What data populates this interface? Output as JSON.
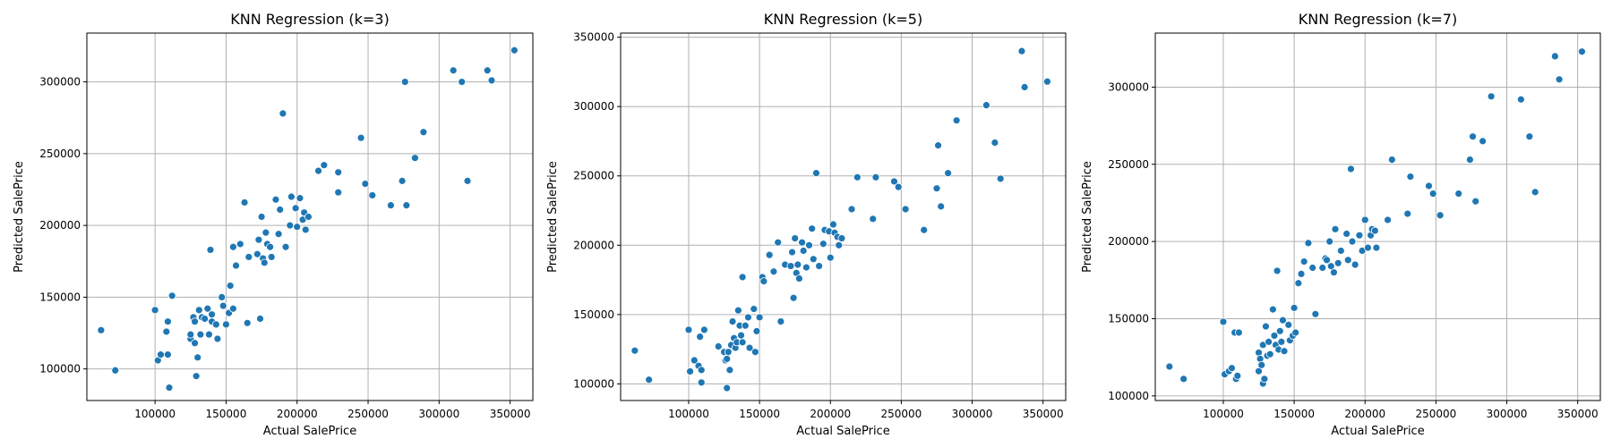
{
  "chart_data": [
    {
      "type": "scatter",
      "title": "KNN Regression (k=3)",
      "xlabel": "Actual SalePrice",
      "ylabel": "Predicted SalePrice",
      "xlim": [
        52000,
        366000
      ],
      "ylim": [
        78000,
        334000
      ],
      "xticks": [
        100000,
        150000,
        200000,
        250000,
        300000,
        350000
      ],
      "yticks": [
        100000,
        150000,
        200000,
        250000,
        300000
      ],
      "grid": true,
      "color": "#1f77b4",
      "points": [
        [
          62000,
          127000
        ],
        [
          72000,
          99000
        ],
        [
          100000,
          141000
        ],
        [
          102000,
          106000
        ],
        [
          104000,
          110000
        ],
        [
          108000,
          126000
        ],
        [
          109000,
          110000
        ],
        [
          109000,
          133000
        ],
        [
          110000,
          87000
        ],
        [
          112000,
          151000
        ],
        [
          125000,
          121000
        ],
        [
          125000,
          124000
        ],
        [
          127000,
          136000
        ],
        [
          128000,
          118000
        ],
        [
          128000,
          133000
        ],
        [
          129000,
          95000
        ],
        [
          130000,
          108000
        ],
        [
          131000,
          141000
        ],
        [
          132000,
          124000
        ],
        [
          133000,
          136000
        ],
        [
          135000,
          135000
        ],
        [
          137000,
          142000
        ],
        [
          138000,
          124000
        ],
        [
          139000,
          183000
        ],
        [
          140000,
          138000
        ],
        [
          140000,
          133000
        ],
        [
          143000,
          131000
        ],
        [
          144000,
          121000
        ],
        [
          147000,
          150000
        ],
        [
          148000,
          144000
        ],
        [
          150000,
          131000
        ],
        [
          152000,
          139000
        ],
        [
          153000,
          158000
        ],
        [
          155000,
          142000
        ],
        [
          155000,
          185000
        ],
        [
          157000,
          172000
        ],
        [
          160000,
          187000
        ],
        [
          163000,
          216000
        ],
        [
          165000,
          132000
        ],
        [
          166000,
          178000
        ],
        [
          172000,
          180000
        ],
        [
          173000,
          190000
        ],
        [
          174000,
          135000
        ],
        [
          175000,
          206000
        ],
        [
          176000,
          177000
        ],
        [
          177000,
          174000
        ],
        [
          178000,
          195000
        ],
        [
          179000,
          187000
        ],
        [
          181000,
          185000
        ],
        [
          182000,
          178000
        ],
        [
          185000,
          218000
        ],
        [
          187000,
          194000
        ],
        [
          188000,
          211000
        ],
        [
          190000,
          278000
        ],
        [
          192000,
          185000
        ],
        [
          195000,
          200000
        ],
        [
          196000,
          220000
        ],
        [
          199000,
          212000
        ],
        [
          200000,
          199000
        ],
        [
          202000,
          219000
        ],
        [
          204000,
          204000
        ],
        [
          205000,
          209000
        ],
        [
          206000,
          197000
        ],
        [
          208000,
          206000
        ],
        [
          215000,
          238000
        ],
        [
          219000,
          242000
        ],
        [
          229000,
          237000
        ],
        [
          229000,
          223000
        ],
        [
          245000,
          261000
        ],
        [
          248000,
          229000
        ],
        [
          253000,
          221000
        ],
        [
          266000,
          214000
        ],
        [
          274000,
          231000
        ],
        [
          276000,
          300000
        ],
        [
          277000,
          214000
        ],
        [
          283000,
          247000
        ],
        [
          289000,
          265000
        ],
        [
          310000,
          308000
        ],
        [
          316000,
          300000
        ],
        [
          320000,
          231000
        ],
        [
          334000,
          308000
        ],
        [
          337000,
          301000
        ],
        [
          353000,
          322000
        ]
      ]
    },
    {
      "type": "scatter",
      "title": "KNN Regression (k=5)",
      "xlabel": "Actual SalePrice",
      "ylabel": "Predicted SalePrice",
      "xlim": [
        52000,
        366000
      ],
      "ylim": [
        88000,
        353000
      ],
      "xticks": [
        100000,
        150000,
        200000,
        250000,
        300000,
        350000
      ],
      "yticks": [
        100000,
        150000,
        200000,
        250000,
        300000,
        350000
      ],
      "grid": true,
      "color": "#1f77b4",
      "points": [
        [
          62000,
          124000
        ],
        [
          72000,
          103000
        ],
        [
          100000,
          139000
        ],
        [
          101000,
          109000
        ],
        [
          104000,
          117000
        ],
        [
          107000,
          113000
        ],
        [
          108000,
          134000
        ],
        [
          109000,
          110000
        ],
        [
          109000,
          101000
        ],
        [
          111000,
          139000
        ],
        [
          121000,
          127000
        ],
        [
          125000,
          123000
        ],
        [
          126000,
          117000
        ],
        [
          127000,
          118000
        ],
        [
          127000,
          97000
        ],
        [
          128000,
          123000
        ],
        [
          129000,
          110000
        ],
        [
          130000,
          128000
        ],
        [
          131000,
          145000
        ],
        [
          132000,
          133000
        ],
        [
          133000,
          126000
        ],
        [
          134000,
          130000
        ],
        [
          135000,
          153000
        ],
        [
          136000,
          142000
        ],
        [
          137000,
          135000
        ],
        [
          138000,
          177000
        ],
        [
          138000,
          130000
        ],
        [
          140000,
          142000
        ],
        [
          142000,
          148000
        ],
        [
          143000,
          126000
        ],
        [
          146000,
          154000
        ],
        [
          147000,
          123000
        ],
        [
          148000,
          138000
        ],
        [
          150000,
          148000
        ],
        [
          152000,
          177000
        ],
        [
          153000,
          174000
        ],
        [
          157000,
          193000
        ],
        [
          160000,
          181000
        ],
        [
          163000,
          202000
        ],
        [
          165000,
          145000
        ],
        [
          168000,
          186000
        ],
        [
          172000,
          185000
        ],
        [
          173000,
          195000
        ],
        [
          174000,
          162000
        ],
        [
          175000,
          205000
        ],
        [
          176000,
          180000
        ],
        [
          177000,
          186000
        ],
        [
          178000,
          176000
        ],
        [
          180000,
          202000
        ],
        [
          181000,
          196000
        ],
        [
          183000,
          184000
        ],
        [
          185000,
          200000
        ],
        [
          187000,
          212000
        ],
        [
          188000,
          190000
        ],
        [
          190000,
          252000
        ],
        [
          192000,
          185000
        ],
        [
          195000,
          201000
        ],
        [
          196000,
          211000
        ],
        [
          199000,
          210000
        ],
        [
          200000,
          191000
        ],
        [
          202000,
          215000
        ],
        [
          203000,
          209000
        ],
        [
          205000,
          206000
        ],
        [
          206000,
          200000
        ],
        [
          208000,
          205000
        ],
        [
          215000,
          226000
        ],
        [
          219000,
          249000
        ],
        [
          230000,
          219000
        ],
        [
          232000,
          249000
        ],
        [
          245000,
          246000
        ],
        [
          248000,
          242000
        ],
        [
          253000,
          226000
        ],
        [
          266000,
          211000
        ],
        [
          275000,
          241000
        ],
        [
          276000,
          272000
        ],
        [
          278000,
          228000
        ],
        [
          283000,
          252000
        ],
        [
          289000,
          290000
        ],
        [
          310000,
          301000
        ],
        [
          316000,
          274000
        ],
        [
          320000,
          248000
        ],
        [
          335000,
          340000
        ],
        [
          337000,
          314000
        ],
        [
          353000,
          318000
        ]
      ]
    },
    {
      "type": "scatter",
      "title": "KNN Regression (k=7)",
      "xlabel": "Actual SalePrice",
      "ylabel": "Predicted SalePrice",
      "xlim": [
        52000,
        366000
      ],
      "ylim": [
        97000,
        335000
      ],
      "xticks": [
        100000,
        150000,
        200000,
        250000,
        300000,
        350000
      ],
      "yticks": [
        100000,
        150000,
        200000,
        250000,
        300000
      ],
      "grid": true,
      "color": "#1f77b4",
      "points": [
        [
          62000,
          119000
        ],
        [
          72000,
          111000
        ],
        [
          100000,
          148000
        ],
        [
          101000,
          114000
        ],
        [
          104000,
          116000
        ],
        [
          106000,
          118000
        ],
        [
          108000,
          141000
        ],
        [
          109000,
          111000
        ],
        [
          110000,
          113000
        ],
        [
          111000,
          141000
        ],
        [
          125000,
          116000
        ],
        [
          125000,
          128000
        ],
        [
          126000,
          124000
        ],
        [
          127000,
          120000
        ],
        [
          128000,
          108000
        ],
        [
          128000,
          133000
        ],
        [
          129000,
          111000
        ],
        [
          130000,
          145000
        ],
        [
          131000,
          126000
        ],
        [
          132000,
          135000
        ],
        [
          133000,
          127000
        ],
        [
          135000,
          156000
        ],
        [
          136000,
          139000
        ],
        [
          137000,
          133000
        ],
        [
          138000,
          181000
        ],
        [
          139000,
          130000
        ],
        [
          140000,
          142000
        ],
        [
          141000,
          135000
        ],
        [
          142000,
          149000
        ],
        [
          143000,
          129000
        ],
        [
          146000,
          146000
        ],
        [
          147000,
          136000
        ],
        [
          149000,
          139000
        ],
        [
          150000,
          157000
        ],
        [
          151000,
          141000
        ],
        [
          153000,
          173000
        ],
        [
          155000,
          179000
        ],
        [
          157000,
          187000
        ],
        [
          160000,
          199000
        ],
        [
          163000,
          183000
        ],
        [
          165000,
          153000
        ],
        [
          170000,
          183000
        ],
        [
          172000,
          189000
        ],
        [
          173000,
          188000
        ],
        [
          175000,
          200000
        ],
        [
          176000,
          184000
        ],
        [
          178000,
          180000
        ],
        [
          179000,
          208000
        ],
        [
          181000,
          186000
        ],
        [
          183000,
          194000
        ],
        [
          187000,
          205000
        ],
        [
          188000,
          188000
        ],
        [
          190000,
          247000
        ],
        [
          191000,
          200000
        ],
        [
          193000,
          185000
        ],
        [
          196000,
          204000
        ],
        [
          198000,
          194000
        ],
        [
          200000,
          214000
        ],
        [
          202000,
          196000
        ],
        [
          204000,
          204000
        ],
        [
          205000,
          208000
        ],
        [
          207000,
          207000
        ],
        [
          208000,
          196000
        ],
        [
          216000,
          214000
        ],
        [
          219000,
          253000
        ],
        [
          230000,
          218000
        ],
        [
          232000,
          242000
        ],
        [
          245000,
          236000
        ],
        [
          248000,
          231000
        ],
        [
          253000,
          217000
        ],
        [
          266000,
          231000
        ],
        [
          274000,
          253000
        ],
        [
          276000,
          268000
        ],
        [
          278000,
          226000
        ],
        [
          283000,
          265000
        ],
        [
          289000,
          294000
        ],
        [
          310000,
          292000
        ],
        [
          316000,
          268000
        ],
        [
          320000,
          232000
        ],
        [
          334000,
          320000
        ],
        [
          337000,
          305000
        ],
        [
          353000,
          323000
        ]
      ]
    }
  ]
}
